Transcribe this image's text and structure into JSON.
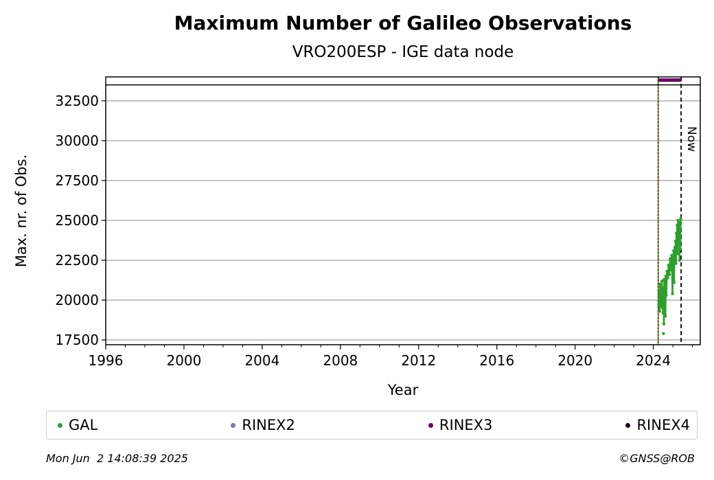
{
  "chart_data": {
    "type": "scatter",
    "title": "Maximum Number of Galileo Observations",
    "subtitle": "VRO200ESP - IGE data node",
    "xlabel": "Year",
    "ylabel": "Max. nr. of Obs.",
    "xlim": [
      1996,
      2026.4
    ],
    "ylim": [
      17200,
      34000
    ],
    "xticks": [
      1996,
      2000,
      2004,
      2008,
      2012,
      2016,
      2020,
      2024
    ],
    "xtick_labels": [
      "1996",
      "2000",
      "2004",
      "2008",
      "2012",
      "2016",
      "2020",
      "2024"
    ],
    "yticks": [
      17500,
      20000,
      22500,
      25000,
      27500,
      30000,
      32500
    ],
    "ytick_labels": [
      "17500",
      "20000",
      "22500",
      "25000",
      "27500",
      "30000",
      "32500"
    ],
    "grid": "horizontal",
    "series": [
      {
        "name": "GAL",
        "color": "#2ca02c",
        "points": [
          [
            2024.28,
            19700
          ],
          [
            2024.3,
            20500
          ],
          [
            2024.32,
            19300
          ],
          [
            2024.34,
            21000
          ],
          [
            2024.36,
            20100
          ],
          [
            2024.38,
            19600
          ],
          [
            2024.4,
            20900
          ],
          [
            2024.42,
            19900
          ],
          [
            2024.44,
            21200
          ],
          [
            2024.46,
            19500
          ],
          [
            2024.48,
            20400
          ],
          [
            2024.5,
            19200
          ],
          [
            2024.52,
            20800
          ],
          [
            2024.54,
            18500
          ],
          [
            2024.56,
            21300
          ],
          [
            2024.58,
            20000
          ],
          [
            2024.6,
            21000
          ],
          [
            2024.62,
            19000
          ],
          [
            2024.64,
            21500
          ],
          [
            2024.66,
            20300
          ],
          [
            2024.7,
            21800
          ],
          [
            2024.74,
            21400
          ],
          [
            2024.78,
            22200
          ],
          [
            2024.82,
            21600
          ],
          [
            2024.86,
            22600
          ],
          [
            2024.9,
            21900
          ],
          [
            2024.94,
            22800
          ],
          [
            2024.98,
            20400
          ],
          [
            2025.0,
            22400
          ],
          [
            2025.04,
            23100
          ],
          [
            2025.06,
            21100
          ],
          [
            2025.08,
            22600
          ],
          [
            2025.1,
            23300
          ],
          [
            2025.12,
            22800
          ],
          [
            2025.14,
            23700
          ],
          [
            2025.16,
            22300
          ],
          [
            2025.18,
            24200
          ],
          [
            2025.2,
            23500
          ],
          [
            2025.22,
            24700
          ],
          [
            2025.24,
            22900
          ],
          [
            2025.26,
            25000
          ],
          [
            2025.28,
            24300
          ],
          [
            2025.3,
            23800
          ],
          [
            2025.32,
            24900
          ],
          [
            2025.34,
            22500
          ],
          [
            2025.36,
            24600
          ],
          [
            2025.38,
            23200
          ],
          [
            2025.4,
            25100
          ],
          [
            2024.52,
            17900
          ]
        ]
      },
      {
        "name": "RINEX3",
        "color": "#67005f",
        "segment": [
          2024.25,
          2025.42
        ],
        "y": 33800
      }
    ],
    "legend": [
      {
        "label": "GAL",
        "color": "#2ca02c"
      },
      {
        "label": "RINEX2",
        "color": "#7777b8"
      },
      {
        "label": "RINEX3",
        "color": "#67005f"
      },
      {
        "label": "RINEX4",
        "color": "#200020"
      }
    ],
    "annotations": [
      {
        "type": "vline",
        "x": 2024.25,
        "color": "#2ca02c",
        "style": "solid"
      },
      {
        "type": "vline",
        "x": 2024.25,
        "color": "#cc0000",
        "style": "dotted"
      },
      {
        "type": "vline",
        "x": 2025.42,
        "color": "#000000",
        "style": "dashed",
        "label": "Now"
      },
      {
        "type": "hline",
        "y": 33500,
        "color": "#000000",
        "style": "solid"
      }
    ]
  },
  "footer": {
    "timestamp": "Mon Jun  2 14:08:39 2025",
    "credit": "©GNSS@ROB"
  }
}
